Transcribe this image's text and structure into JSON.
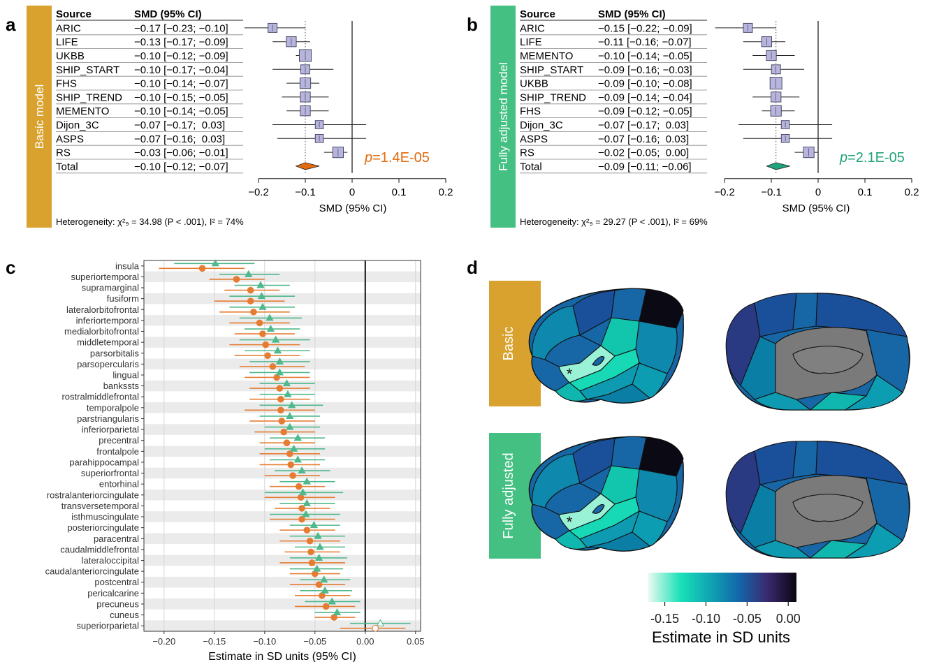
{
  "panel_letters": {
    "a": "a",
    "b": "b",
    "c": "c",
    "d": "d"
  },
  "colors": {
    "basic": "#d9a22e",
    "adjusted": "#45c083",
    "basic_diamond": "#e36a0d",
    "adjusted_diamond": "#1fa37a",
    "box_fill": "#b7b4de",
    "box_stroke": "#4a4a66",
    "c_basic": "#e57c32",
    "c_adjusted": "#4fb88c",
    "brain_gray": "#808080"
  },
  "forest_a": {
    "band_label": "Basic model",
    "header_source": "Source",
    "header_smd": "SMD (95% CI)",
    "rows": [
      {
        "source": "ARIC",
        "ci": "−0.17 [−0.23; −0.10]",
        "est": -0.17,
        "lo": -0.23,
        "hi": -0.1,
        "w": 0.55
      },
      {
        "source": "LIFE",
        "ci": "−0.13 [−0.17; −0.09]",
        "est": -0.13,
        "lo": -0.17,
        "hi": -0.09,
        "w": 0.7
      },
      {
        "source": "UKBB",
        "ci": "−0.10 [−0.12; −0.09]",
        "est": -0.1,
        "lo": -0.12,
        "hi": -0.09,
        "w": 1.0
      },
      {
        "source": "SHIP_START",
        "ci": "−0.10 [−0.17; −0.04]",
        "est": -0.1,
        "lo": -0.17,
        "hi": -0.04,
        "w": 0.55
      },
      {
        "source": "FHS",
        "ci": "−0.10 [−0.14; −0.07]",
        "est": -0.1,
        "lo": -0.14,
        "hi": -0.07,
        "w": 0.8
      },
      {
        "source": "SHIP_TREND",
        "ci": "−0.10 [−0.15; −0.05]",
        "est": -0.1,
        "lo": -0.15,
        "hi": -0.05,
        "w": 0.7
      },
      {
        "source": "MEMENTO",
        "ci": "−0.10 [−0.14; −0.05]",
        "est": -0.1,
        "lo": -0.14,
        "hi": -0.05,
        "w": 0.7
      },
      {
        "source": "Dijon_3C",
        "ci": "−0.07 [−0.17;  0.03]",
        "est": -0.07,
        "lo": -0.17,
        "hi": 0.03,
        "w": 0.4
      },
      {
        "source": "ASPS",
        "ci": "−0.07 [−0.16;  0.03]",
        "est": -0.07,
        "lo": -0.16,
        "hi": 0.03,
        "w": 0.4
      },
      {
        "source": "RS",
        "ci": "−0.03 [−0.06; −0.01]",
        "est": -0.03,
        "lo": -0.06,
        "hi": -0.01,
        "w": 0.8
      }
    ],
    "total": {
      "source": "Total",
      "ci": "−0.10 [−0.12; −0.07]",
      "est": -0.1,
      "lo": -0.12,
      "hi": -0.07
    },
    "pvalue_p": "p",
    "pvalue_text": "=1.4E-05",
    "xlabel": "SMD (95% CI)",
    "ticks": [
      -0.2,
      -0.1,
      0,
      0.1,
      0.2
    ],
    "tick_labels": [
      "−0.2",
      "−0.1",
      "0",
      "0.1",
      "0.2"
    ],
    "heterogeneity": "Heterogeneity: χ²₉ = 34.98 (P < .001), I² = 74%"
  },
  "forest_b": {
    "band_label": "Fully adjusted model",
    "header_source": "Source",
    "header_smd": "SMD (95% CI)",
    "rows": [
      {
        "source": "ARIC",
        "ci": "−0.15 [−0.22; −0.09]",
        "est": -0.15,
        "lo": -0.22,
        "hi": -0.09,
        "w": 0.55
      },
      {
        "source": "LIFE",
        "ci": "−0.11 [−0.16; −0.07]",
        "est": -0.11,
        "lo": -0.16,
        "hi": -0.07,
        "w": 0.7
      },
      {
        "source": "MEMENTO",
        "ci": "−0.10 [−0.14; −0.05]",
        "est": -0.1,
        "lo": -0.14,
        "hi": -0.05,
        "w": 0.7
      },
      {
        "source": "SHIP_START",
        "ci": "−0.09 [−0.16; −0.03]",
        "est": -0.09,
        "lo": -0.16,
        "hi": -0.03,
        "w": 0.55
      },
      {
        "source": "UKBB",
        "ci": "−0.09 [−0.10; −0.08]",
        "est": -0.09,
        "lo": -0.1,
        "hi": -0.08,
        "w": 1.0
      },
      {
        "source": "SHIP_TREND",
        "ci": "−0.09 [−0.14; −0.04]",
        "est": -0.09,
        "lo": -0.14,
        "hi": -0.04,
        "w": 0.7
      },
      {
        "source": "FHS",
        "ci": "−0.09 [−0.12; −0.05]",
        "est": -0.09,
        "lo": -0.12,
        "hi": -0.05,
        "w": 0.8
      },
      {
        "source": "Dijon_3C",
        "ci": "−0.07 [−0.17;  0.03]",
        "est": -0.07,
        "lo": -0.17,
        "hi": 0.03,
        "w": 0.4
      },
      {
        "source": "ASPS",
        "ci": "−0.07 [−0.16;  0.03]",
        "est": -0.07,
        "lo": -0.16,
        "hi": 0.03,
        "w": 0.4
      },
      {
        "source": "RS",
        "ci": "−0.02 [−0.05;  0.00]",
        "est": -0.02,
        "lo": -0.05,
        "hi": 0.0,
        "w": 0.8
      }
    ],
    "total": {
      "source": "Total",
      "ci": "−0.09 [−0.11; −0.06]",
      "est": -0.09,
      "lo": -0.11,
      "hi": -0.06
    },
    "pvalue_p": "p",
    "pvalue_text": "=2.1E-05",
    "xlabel": "SMD (95% CI)",
    "ticks": [
      -0.2,
      -0.1,
      0,
      0.1,
      0.2
    ],
    "tick_labels": [
      "−0.2",
      "−0.1",
      "0",
      "0.1",
      "0.2"
    ],
    "heterogeneity": "Heterogeneity: χ²₉ = 29.27 (P < .001), I² = 69%"
  },
  "chart_data": {
    "type": "scatter",
    "xlabel": "Estimate in SD units (95% CI)",
    "xlim": [
      -0.22,
      0.055
    ],
    "ticks": [
      -0.2,
      -0.15,
      -0.1,
      -0.05,
      0,
      0.05
    ],
    "tick_labels": [
      "−0.20",
      "−0.15",
      "−0.10",
      "−0.05",
      "0.00",
      "0.05"
    ],
    "regions": [
      "insula",
      "superiortemporal",
      "supramarginal",
      "fusiform",
      "lateralorbitofrontal",
      "inferiortemporal",
      "medialorbitofrontal",
      "middletemporal",
      "parsorbitalis",
      "parsopercularis",
      "lingual",
      "bankssts",
      "rostralmiddlefrontal",
      "temporalpole",
      "parstriangularis",
      "inferiorparietal",
      "precentral",
      "frontalpole",
      "parahippocampal",
      "superiorfrontal",
      "entorhinal",
      "rostralanteriorcingulate",
      "transversetemporal",
      "isthmuscingulate",
      "posteriorcingulate",
      "paracentral",
      "caudalmiddlefrontal",
      "lateraloccipital",
      "caudalanteriorcingulate",
      "postcentral",
      "pericalcarine",
      "precuneus",
      "cuneus",
      "superiorparietal"
    ],
    "series": [
      {
        "name": "Basic",
        "marker": "circle",
        "est": [
          -0.162,
          -0.128,
          -0.114,
          -0.114,
          -0.111,
          -0.105,
          -0.102,
          -0.099,
          -0.097,
          -0.092,
          -0.088,
          -0.085,
          -0.084,
          -0.084,
          -0.083,
          -0.081,
          -0.078,
          -0.075,
          -0.074,
          -0.072,
          -0.066,
          -0.064,
          -0.063,
          -0.063,
          -0.058,
          -0.055,
          -0.054,
          -0.053,
          -0.05,
          -0.046,
          -0.043,
          -0.039,
          -0.031,
          0.01
        ],
        "lo": [
          -0.205,
          -0.155,
          -0.14,
          -0.15,
          -0.145,
          -0.135,
          -0.13,
          -0.135,
          -0.13,
          -0.125,
          -0.12,
          -0.115,
          -0.115,
          -0.12,
          -0.115,
          -0.11,
          -0.105,
          -0.105,
          -0.105,
          -0.1,
          -0.095,
          -0.1,
          -0.09,
          -0.095,
          -0.085,
          -0.085,
          -0.08,
          -0.085,
          -0.075,
          -0.075,
          -0.07,
          -0.07,
          -0.05,
          -0.025
        ],
        "hi": [
          -0.12,
          -0.1,
          -0.085,
          -0.08,
          -0.075,
          -0.075,
          -0.07,
          -0.065,
          -0.065,
          -0.06,
          -0.055,
          -0.055,
          -0.055,
          -0.05,
          -0.05,
          -0.05,
          -0.05,
          -0.045,
          -0.045,
          -0.045,
          -0.04,
          -0.03,
          -0.035,
          -0.03,
          -0.03,
          -0.025,
          -0.025,
          -0.02,
          -0.025,
          -0.02,
          -0.015,
          -0.01,
          -0.01,
          0.04
        ],
        "sig": [
          true,
          true,
          true,
          true,
          true,
          true,
          true,
          true,
          true,
          true,
          true,
          true,
          true,
          true,
          true,
          true,
          true,
          true,
          true,
          true,
          true,
          true,
          true,
          true,
          true,
          true,
          true,
          true,
          true,
          true,
          true,
          true,
          true,
          false
        ]
      },
      {
        "name": "Fully adjusted",
        "marker": "triangle",
        "est": [
          -0.149,
          -0.116,
          -0.104,
          -0.103,
          -0.102,
          -0.095,
          -0.094,
          -0.089,
          -0.087,
          -0.085,
          -0.085,
          -0.078,
          -0.077,
          -0.073,
          -0.075,
          -0.075,
          -0.067,
          -0.071,
          -0.067,
          -0.063,
          -0.058,
          -0.062,
          -0.058,
          -0.059,
          -0.051,
          -0.047,
          -0.045,
          -0.046,
          -0.048,
          -0.041,
          -0.04,
          -0.033,
          -0.028,
          0.015
        ],
        "lo": [
          -0.19,
          -0.145,
          -0.13,
          -0.135,
          -0.135,
          -0.125,
          -0.12,
          -0.125,
          -0.12,
          -0.115,
          -0.115,
          -0.105,
          -0.105,
          -0.105,
          -0.105,
          -0.1,
          -0.095,
          -0.1,
          -0.095,
          -0.09,
          -0.085,
          -0.1,
          -0.085,
          -0.095,
          -0.075,
          -0.075,
          -0.07,
          -0.075,
          -0.075,
          -0.065,
          -0.065,
          -0.06,
          -0.05,
          -0.015
        ],
        "hi": [
          -0.11,
          -0.085,
          -0.075,
          -0.07,
          -0.07,
          -0.063,
          -0.065,
          -0.055,
          -0.055,
          -0.055,
          -0.055,
          -0.05,
          -0.05,
          -0.042,
          -0.045,
          -0.045,
          -0.04,
          -0.04,
          -0.04,
          -0.035,
          -0.03,
          -0.022,
          -0.03,
          -0.025,
          -0.025,
          -0.02,
          -0.02,
          -0.018,
          -0.022,
          -0.015,
          -0.013,
          -0.005,
          -0.005,
          0.045
        ],
        "sig": [
          true,
          true,
          true,
          true,
          true,
          true,
          true,
          true,
          true,
          true,
          true,
          true,
          true,
          true,
          true,
          true,
          true,
          true,
          true,
          true,
          true,
          true,
          true,
          true,
          true,
          true,
          true,
          true,
          true,
          true,
          true,
          true,
          true,
          false
        ]
      }
    ]
  },
  "brain": {
    "basic_label": "Basic",
    "adjusted_label": "Fully adjusted",
    "asterisk": "*",
    "colorbar_tick_labels": [
      "-0.15",
      "-0.10",
      "-0.05",
      "0.00"
    ],
    "colorbar_title": "Estimate in SD units",
    "colorbar_ticks": [
      -0.15,
      -0.1,
      -0.05,
      0.0
    ],
    "colorbar_range": [
      -0.17,
      0.01
    ]
  }
}
